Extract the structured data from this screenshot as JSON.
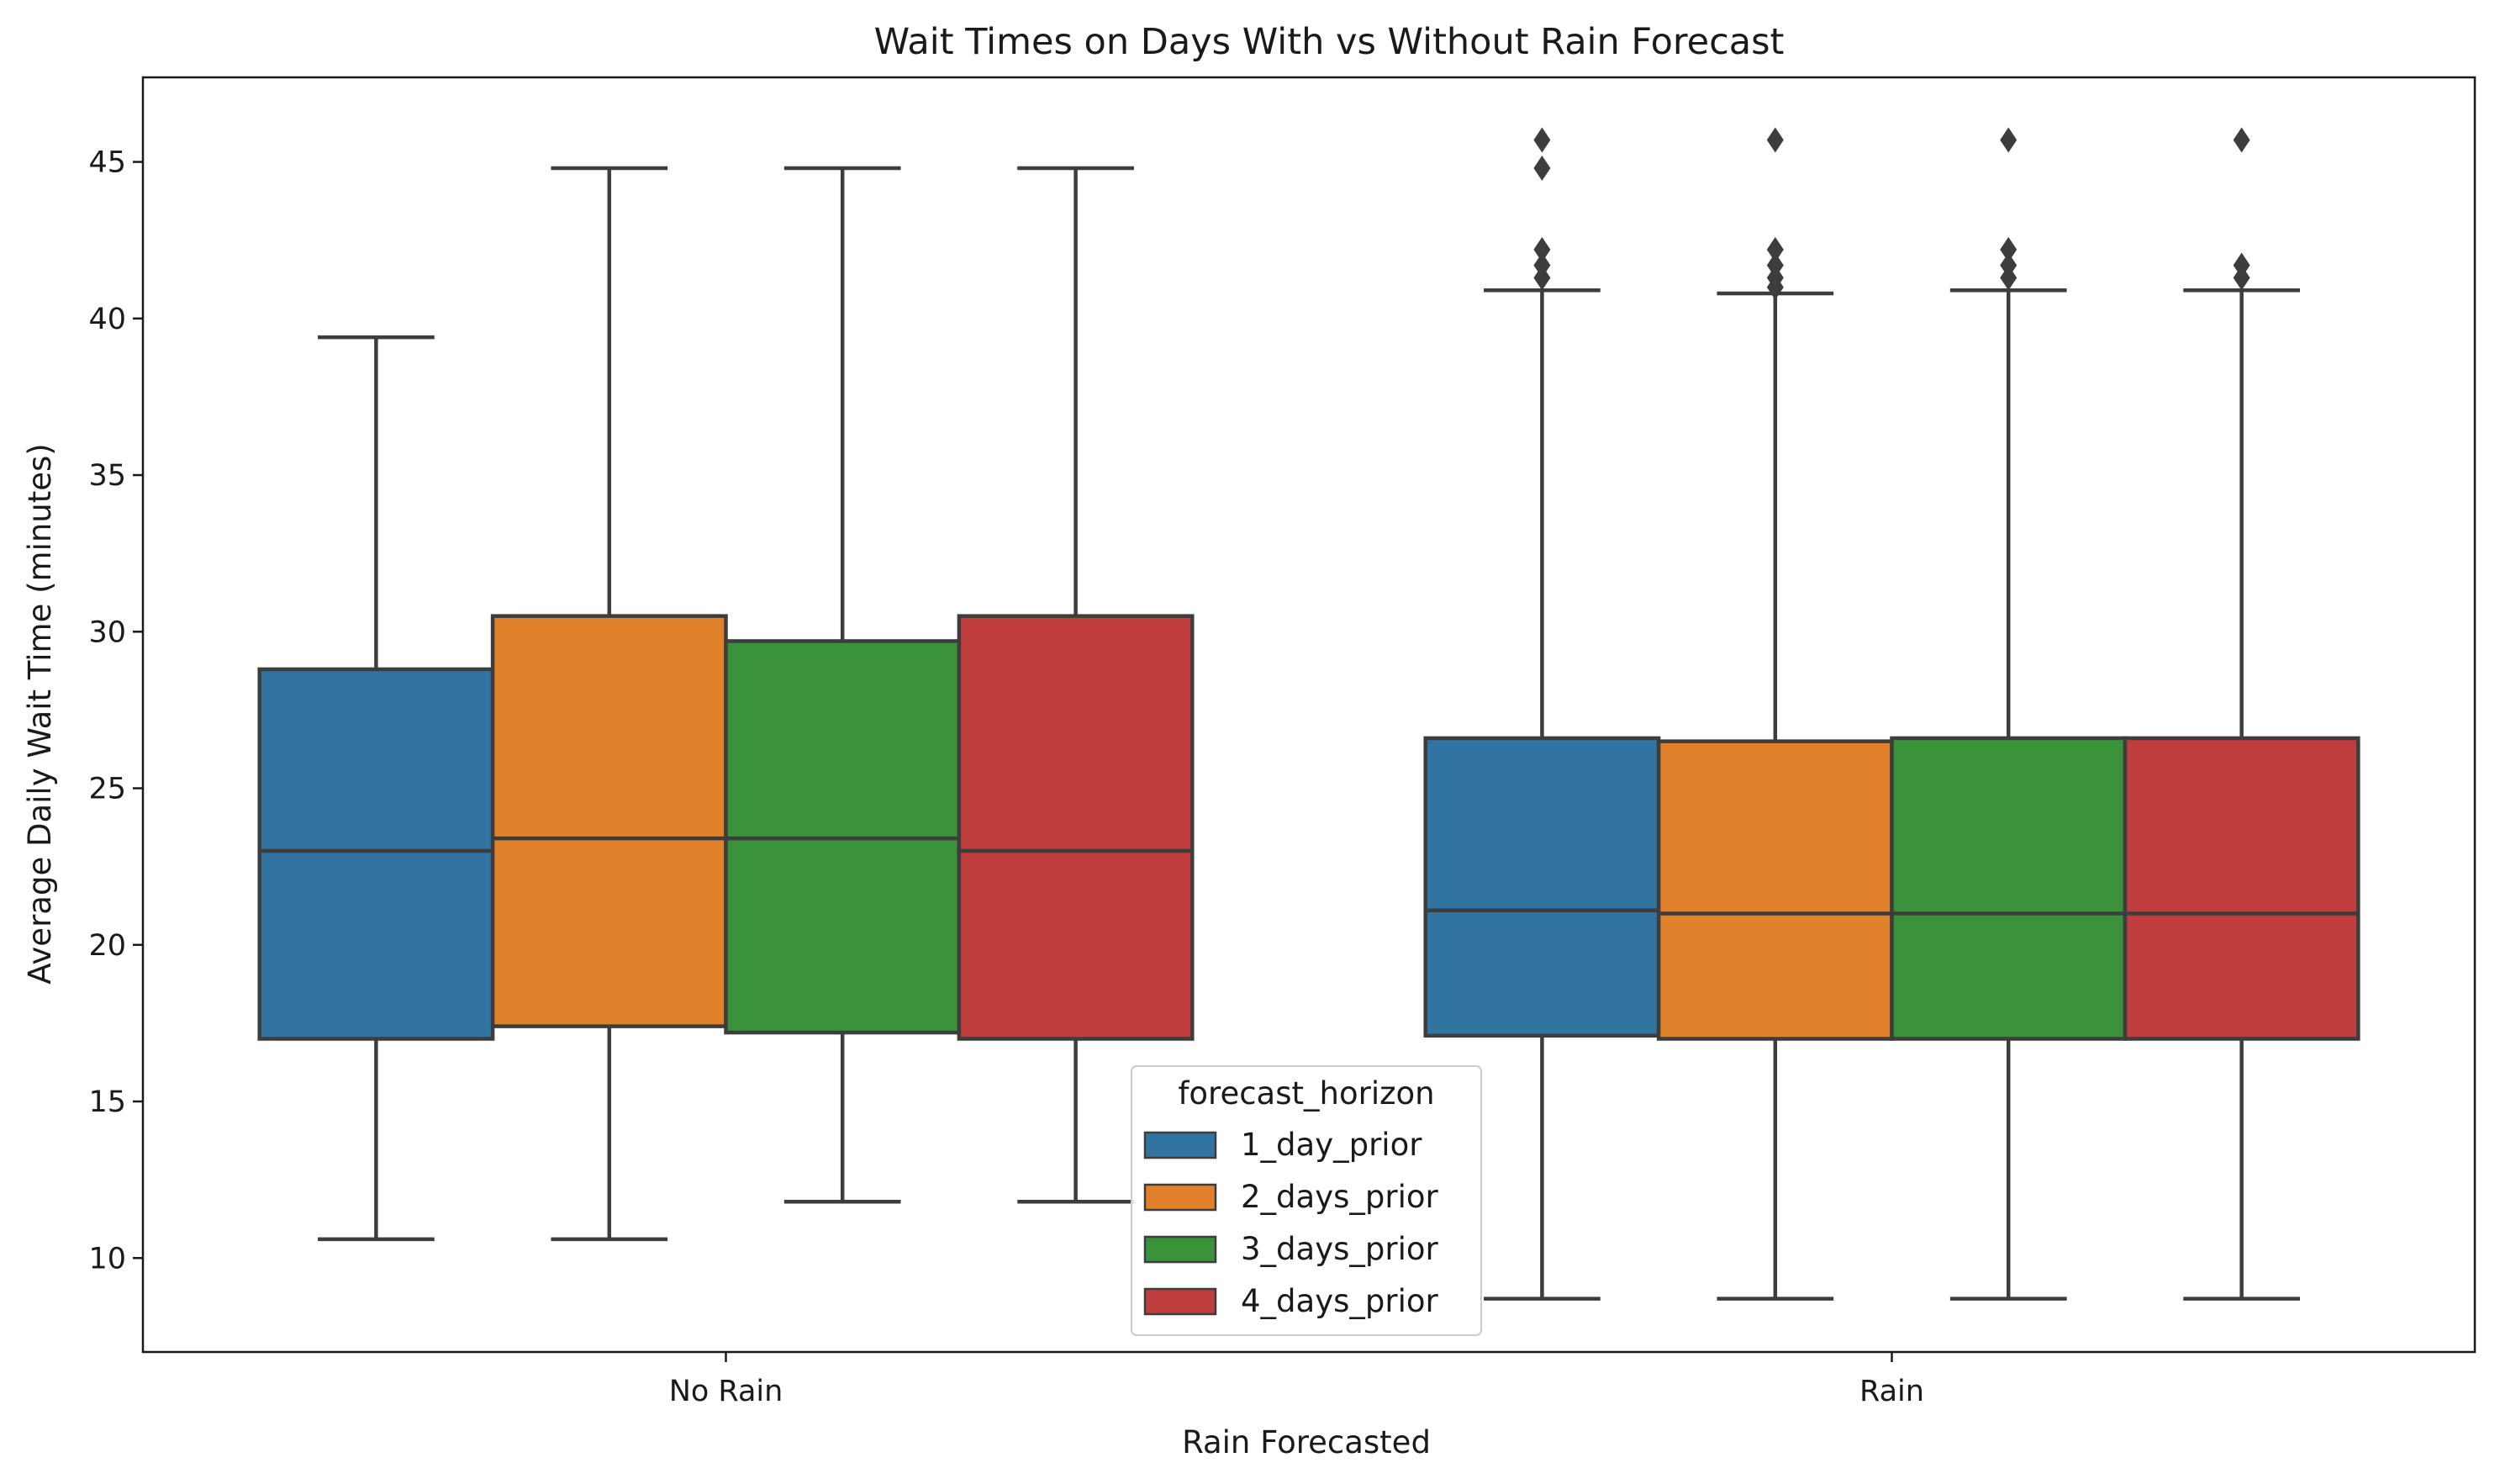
{
  "chart_data": {
    "type": "boxplot",
    "title": "Wait Times on Days With vs Without Rain Forecast",
    "xlabel": "Rain Forecasted",
    "ylabel": "Average Daily Wait Time (minutes)",
    "ylim": [
      7,
      47.7
    ],
    "yticks": [
      10,
      15,
      20,
      25,
      30,
      35,
      40,
      45
    ],
    "categories": [
      "No Rain",
      "Rain"
    ],
    "grid": false,
    "legend": {
      "title": "forecast_horizon",
      "placement": "lower-center"
    },
    "series": [
      {
        "name": "1_day_prior",
        "color": "#3274a1",
        "boxes": [
          {
            "whisker_low": 10.6,
            "q1": 17.0,
            "median": 23.0,
            "q3": 28.8,
            "whisker_high": 39.4,
            "outliers": []
          },
          {
            "whisker_low": 8.7,
            "q1": 17.1,
            "median": 21.1,
            "q3": 26.6,
            "whisker_high": 40.9,
            "outliers": [
              41.3,
              41.7,
              42.2,
              44.8,
              45.7
            ]
          }
        ]
      },
      {
        "name": "2_days_prior",
        "color": "#e1812c",
        "boxes": [
          {
            "whisker_low": 10.6,
            "q1": 17.4,
            "median": 23.4,
            "q3": 30.5,
            "whisker_high": 44.8,
            "outliers": []
          },
          {
            "whisker_low": 8.7,
            "q1": 17.0,
            "median": 21.0,
            "q3": 26.5,
            "whisker_high": 40.8,
            "outliers": [
              41.0,
              41.3,
              41.7,
              42.2,
              45.7
            ]
          }
        ]
      },
      {
        "name": "3_days_prior",
        "color": "#3a923a",
        "boxes": [
          {
            "whisker_low": 11.8,
            "q1": 17.2,
            "median": 23.4,
            "q3": 29.7,
            "whisker_high": 44.8,
            "outliers": []
          },
          {
            "whisker_low": 8.7,
            "q1": 17.0,
            "median": 21.0,
            "q3": 26.6,
            "whisker_high": 40.9,
            "outliers": [
              41.3,
              41.7,
              42.2,
              45.7
            ]
          }
        ]
      },
      {
        "name": "4_days_prior",
        "color": "#c03d3e",
        "boxes": [
          {
            "whisker_low": 11.8,
            "q1": 17.0,
            "median": 23.0,
            "q3": 30.5,
            "whisker_high": 44.8,
            "outliers": []
          },
          {
            "whisker_low": 8.7,
            "q1": 17.0,
            "median": 21.0,
            "q3": 26.6,
            "whisker_high": 40.9,
            "outliers": [
              41.3,
              41.7,
              45.7
            ]
          }
        ]
      }
    ]
  }
}
